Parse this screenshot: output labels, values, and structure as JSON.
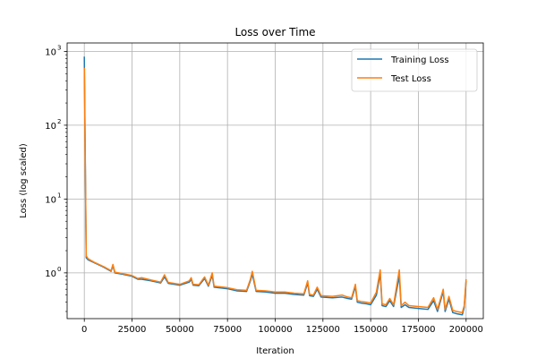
{
  "chart_data": {
    "type": "line",
    "title": "Loss over Time",
    "xlabel": "Iteration",
    "ylabel": "Loss (log scaled)",
    "yscale": "log",
    "xlim": [
      -9000,
      209000
    ],
    "ylim": [
      0.24,
      1300
    ],
    "grid": true,
    "legend_position": "top-right",
    "xticks": [
      0,
      25000,
      50000,
      75000,
      100000,
      125000,
      150000,
      175000,
      200000
    ],
    "xtick_labels": [
      "0",
      "25000",
      "50000",
      "75000",
      "100000",
      "125000",
      "150000",
      "175000",
      "200000"
    ],
    "yticks": [
      1,
      10,
      100,
      1000
    ],
    "ytick_labels": [
      "10",
      "10",
      "10",
      "10"
    ],
    "ytick_exponents": [
      "0",
      "1",
      "2",
      "3"
    ],
    "series": [
      {
        "name": "Training Loss",
        "color": "#1f77b4",
        "points": [
          [
            0,
            850
          ],
          [
            1000,
            1.6
          ],
          [
            2000,
            1.5
          ],
          [
            5000,
            1.38
          ],
          [
            10000,
            1.2
          ],
          [
            14000,
            1.05
          ],
          [
            15000,
            1.25
          ],
          [
            16000,
            1.0
          ],
          [
            20000,
            0.96
          ],
          [
            25000,
            0.9
          ],
          [
            28000,
            0.82
          ],
          [
            30000,
            0.82
          ],
          [
            35000,
            0.78
          ],
          [
            40000,
            0.73
          ],
          [
            42000,
            0.88
          ],
          [
            44000,
            0.72
          ],
          [
            50000,
            0.68
          ],
          [
            55000,
            0.75
          ],
          [
            56000,
            0.82
          ],
          [
            57000,
            0.68
          ],
          [
            60000,
            0.67
          ],
          [
            63000,
            0.84
          ],
          [
            65000,
            0.66
          ],
          [
            67000,
            0.93
          ],
          [
            68000,
            0.64
          ],
          [
            75000,
            0.61
          ],
          [
            80000,
            0.57
          ],
          [
            85000,
            0.56
          ],
          [
            87000,
            0.78
          ],
          [
            88000,
            0.96
          ],
          [
            90000,
            0.56
          ],
          [
            95000,
            0.55
          ],
          [
            100000,
            0.53
          ],
          [
            105000,
            0.53
          ],
          [
            110000,
            0.51
          ],
          [
            115000,
            0.5
          ],
          [
            117000,
            0.73
          ],
          [
            118000,
            0.49
          ],
          [
            120000,
            0.48
          ],
          [
            122000,
            0.6
          ],
          [
            124000,
            0.47
          ],
          [
            130000,
            0.46
          ],
          [
            135000,
            0.47
          ],
          [
            138000,
            0.45
          ],
          [
            140000,
            0.44
          ],
          [
            142000,
            0.65
          ],
          [
            143000,
            0.4
          ],
          [
            145000,
            0.39
          ],
          [
            148000,
            0.38
          ],
          [
            150000,
            0.37
          ],
          [
            153000,
            0.5
          ],
          [
            155000,
            0.98
          ],
          [
            156000,
            0.36
          ],
          [
            158000,
            0.35
          ],
          [
            160000,
            0.42
          ],
          [
            162000,
            0.35
          ],
          [
            165000,
            0.9
          ],
          [
            166000,
            0.34
          ],
          [
            168000,
            0.37
          ],
          [
            170000,
            0.34
          ],
          [
            175000,
            0.33
          ],
          [
            180000,
            0.32
          ],
          [
            183000,
            0.42
          ],
          [
            185000,
            0.3
          ],
          [
            188000,
            0.56
          ],
          [
            189000,
            0.3
          ],
          [
            191000,
            0.44
          ],
          [
            193000,
            0.29
          ],
          [
            195000,
            0.28
          ],
          [
            198000,
            0.27
          ],
          [
            199000,
            0.34
          ],
          [
            200000,
            0.78
          ]
        ]
      },
      {
        "name": "Test Loss",
        "color": "#ff7f0e",
        "points": [
          [
            0,
            600
          ],
          [
            1000,
            1.7
          ],
          [
            2000,
            1.55
          ],
          [
            5000,
            1.4
          ],
          [
            10000,
            1.22
          ],
          [
            14000,
            1.07
          ],
          [
            15000,
            1.3
          ],
          [
            16000,
            1.02
          ],
          [
            20000,
            0.98
          ],
          [
            25000,
            0.92
          ],
          [
            28000,
            0.84
          ],
          [
            30000,
            0.86
          ],
          [
            35000,
            0.8
          ],
          [
            40000,
            0.75
          ],
          [
            42000,
            0.94
          ],
          [
            44000,
            0.74
          ],
          [
            50000,
            0.7
          ],
          [
            55000,
            0.78
          ],
          [
            56000,
            0.86
          ],
          [
            57000,
            0.7
          ],
          [
            60000,
            0.69
          ],
          [
            63000,
            0.88
          ],
          [
            65000,
            0.68
          ],
          [
            67000,
            1.0
          ],
          [
            68000,
            0.66
          ],
          [
            75000,
            0.63
          ],
          [
            80000,
            0.59
          ],
          [
            85000,
            0.58
          ],
          [
            87000,
            0.82
          ],
          [
            88000,
            1.05
          ],
          [
            90000,
            0.58
          ],
          [
            95000,
            0.57
          ],
          [
            100000,
            0.55
          ],
          [
            105000,
            0.55
          ],
          [
            110000,
            0.53
          ],
          [
            115000,
            0.52
          ],
          [
            117000,
            0.78
          ],
          [
            118000,
            0.51
          ],
          [
            120000,
            0.5
          ],
          [
            122000,
            0.64
          ],
          [
            124000,
            0.49
          ],
          [
            130000,
            0.48
          ],
          [
            135000,
            0.5
          ],
          [
            138000,
            0.47
          ],
          [
            140000,
            0.46
          ],
          [
            142000,
            0.7
          ],
          [
            143000,
            0.42
          ],
          [
            145000,
            0.41
          ],
          [
            148000,
            0.4
          ],
          [
            150000,
            0.39
          ],
          [
            153000,
            0.55
          ],
          [
            155000,
            1.1
          ],
          [
            156000,
            0.38
          ],
          [
            158000,
            0.37
          ],
          [
            160000,
            0.45
          ],
          [
            162000,
            0.37
          ],
          [
            165000,
            1.1
          ],
          [
            166000,
            0.36
          ],
          [
            168000,
            0.4
          ],
          [
            170000,
            0.36
          ],
          [
            175000,
            0.35
          ],
          [
            180000,
            0.34
          ],
          [
            183000,
            0.46
          ],
          [
            185000,
            0.32
          ],
          [
            188000,
            0.6
          ],
          [
            189000,
            0.32
          ],
          [
            191000,
            0.48
          ],
          [
            193000,
            0.31
          ],
          [
            195000,
            0.3
          ],
          [
            198000,
            0.29
          ],
          [
            199000,
            0.36
          ],
          [
            200000,
            0.82
          ]
        ]
      }
    ]
  }
}
